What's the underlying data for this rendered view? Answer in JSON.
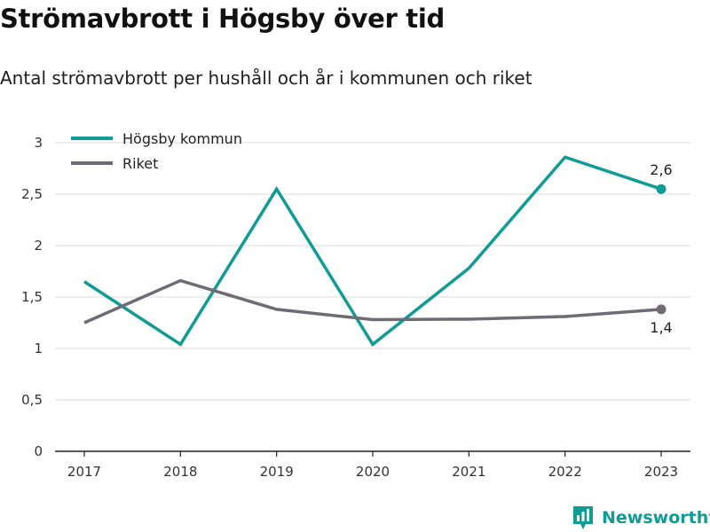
{
  "title": "Strömavbrott i Högsby över tid",
  "subtitle": "Antal strömavbrott per hushåll och år i kommunen och riket",
  "brand": {
    "name": "Newsworthy",
    "icon": "newsworthy-logo-icon",
    "color": "#0f9c94"
  },
  "chart_data": {
    "type": "line",
    "x": [
      "2017",
      "2018",
      "2019",
      "2020",
      "2021",
      "2022",
      "2023"
    ],
    "ylim": [
      0,
      3
    ],
    "yticks": [
      "0",
      "0,5",
      "1",
      "1,5",
      "2",
      "2,5",
      "3"
    ],
    "grid": true,
    "legend_position": "top-left",
    "series": [
      {
        "name": "Högsby kommun",
        "color": "#0f9c94",
        "values": [
          1.65,
          1.04,
          2.55,
          1.04,
          1.78,
          2.86,
          2.55
        ],
        "end_label": "2,6"
      },
      {
        "name": "Riket",
        "color": "#6e6c72",
        "values": [
          1.25,
          1.66,
          1.38,
          1.28,
          1.285,
          1.31,
          1.38
        ],
        "end_label": "1,4"
      }
    ]
  }
}
